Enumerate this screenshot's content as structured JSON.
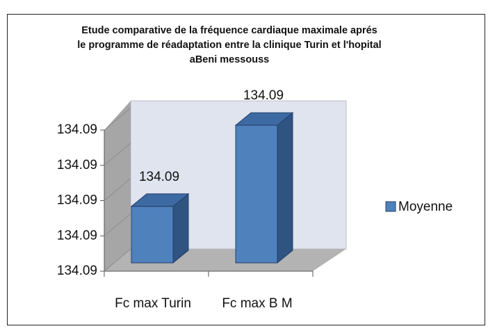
{
  "chart_data": {
    "type": "bar3d",
    "title": "Etude comparative de la fréquence cardiaque maximale aprés le programme de réadaptation entre la clinique Turin et l'hopital aBeni messouss",
    "categories": [
      "Fc max Turin",
      "Fc max B M"
    ],
    "series": [
      {
        "name": "Moyenne",
        "color": "#4f81bd",
        "values": [
          134.0896,
          134.0919
        ],
        "value_labels": [
          "134.09",
          "134.09"
        ]
      }
    ],
    "ylim": [
      134.088,
      134.092
    ],
    "yticks": [
      {
        "value": 134.088,
        "label": "134.09"
      },
      {
        "value": 134.089,
        "label": "134.09"
      },
      {
        "value": 134.09,
        "label": "134.09"
      },
      {
        "value": 134.091,
        "label": "134.09"
      },
      {
        "value": 134.092,
        "label": "134.09"
      }
    ],
    "legend": "right"
  }
}
